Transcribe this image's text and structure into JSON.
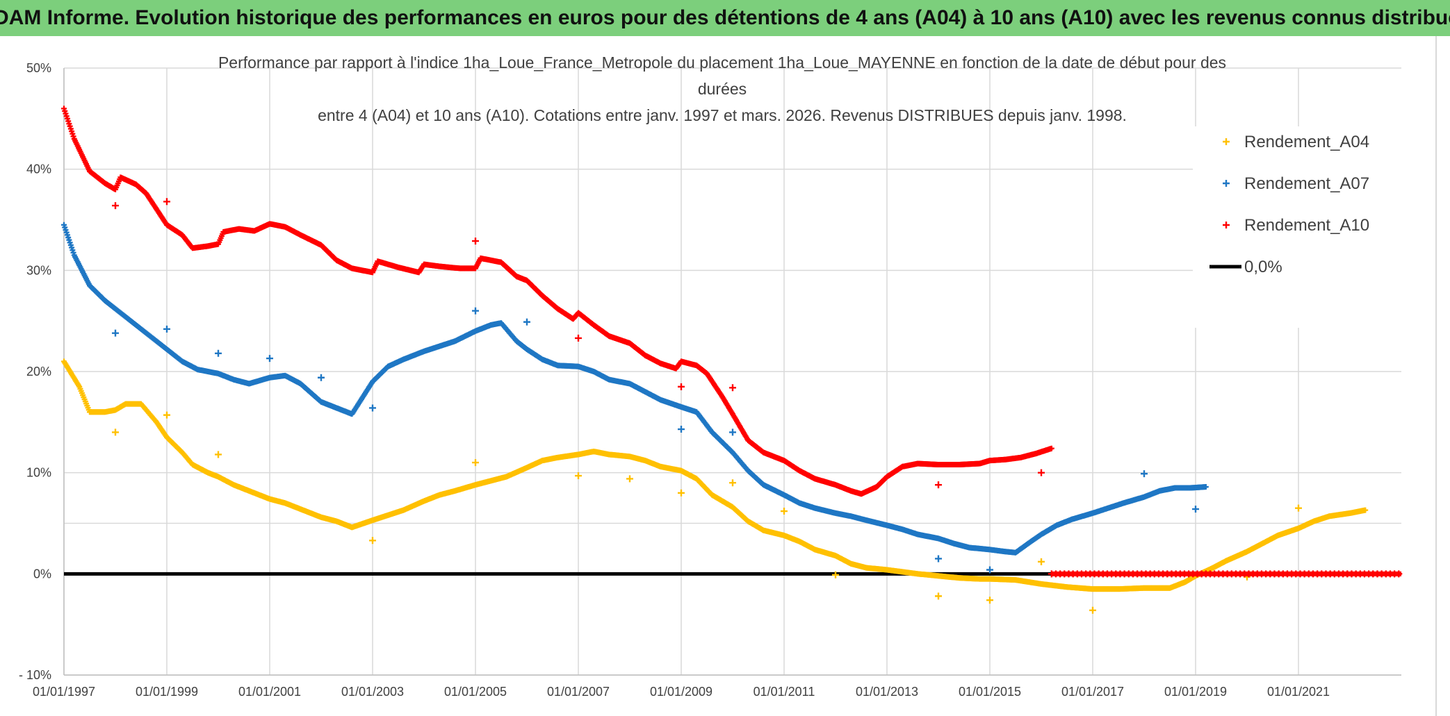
{
  "banner": {
    "title": "ADAM Informe. Evolution historique des performances en euros pour des détentions de 4 ans (A04) à 10 ans (A10) avec les revenus connus distribués"
  },
  "chart_data": {
    "type": "scatter",
    "title_lines": [
      "Performance par rapport à l'indice 1ha_Loue_France_Metropole  du placement 1ha_Loue_MAYENNE en fonction de la date de début pour des",
      "durées",
      "entre 4 (A04) et 10 ans (A10). Cotations entre janv. 1997 et mars. 2026. Revenus DISTRIBUES depuis janv. 1998."
    ],
    "xlabel": "",
    "ylabel": "",
    "xlim": [
      1997.0,
      2023.0
    ],
    "ylim": [
      -10,
      50
    ],
    "y_ticks": [
      -10,
      0,
      10,
      20,
      30,
      40,
      50
    ],
    "y_tick_labels": [
      "- 10%",
      "0%",
      "10%",
      "20%",
      "30%",
      "40%",
      "50%"
    ],
    "x_ticks": [
      1997,
      1999,
      2001,
      2003,
      2005,
      2007,
      2009,
      2011,
      2013,
      2015,
      2017,
      2019,
      2021
    ],
    "x_tick_labels": [
      "01/01/1997",
      "01/01/1999",
      "01/01/2001",
      "01/01/2003",
      "01/01/2005",
      "01/01/2007",
      "01/01/2009",
      "01/01/2011",
      "01/01/2013",
      "01/01/2015",
      "01/01/2017",
      "01/01/2019",
      "01/01/2021"
    ],
    "extra_gridline_y": 5,
    "grid": true,
    "legend_position": "top-right",
    "series": [
      {
        "name": "Rendement_A04",
        "color": "#ffc000",
        "points": [
          [
            1997.0,
            21.0
          ],
          [
            1997.3,
            18.5
          ],
          [
            1997.5,
            16.0
          ],
          [
            1997.8,
            16.0
          ],
          [
            1998.0,
            16.2
          ],
          [
            1998.2,
            16.8
          ],
          [
            1998.5,
            16.8
          ],
          [
            1998.8,
            15.0
          ],
          [
            1999.0,
            13.5
          ],
          [
            1999.3,
            12.0
          ],
          [
            1999.5,
            10.8
          ],
          [
            1999.8,
            10.0
          ],
          [
            2000.0,
            9.6
          ],
          [
            2000.3,
            8.8
          ],
          [
            2000.6,
            8.2
          ],
          [
            2001.0,
            7.4
          ],
          [
            2001.3,
            7.0
          ],
          [
            2001.6,
            6.4
          ],
          [
            2002.0,
            5.6
          ],
          [
            2002.3,
            5.2
          ],
          [
            2002.6,
            4.6
          ],
          [
            2003.0,
            5.3
          ],
          [
            2003.3,
            5.8
          ],
          [
            2003.6,
            6.3
          ],
          [
            2004.0,
            7.2
          ],
          [
            2004.3,
            7.8
          ],
          [
            2004.6,
            8.2
          ],
          [
            2005.0,
            8.8
          ],
          [
            2005.3,
            9.2
          ],
          [
            2005.6,
            9.6
          ],
          [
            2006.0,
            10.5
          ],
          [
            2006.3,
            11.2
          ],
          [
            2006.6,
            11.5
          ],
          [
            2007.0,
            11.8
          ],
          [
            2007.3,
            12.1
          ],
          [
            2007.6,
            11.8
          ],
          [
            2008.0,
            11.6
          ],
          [
            2008.3,
            11.2
          ],
          [
            2008.6,
            10.6
          ],
          [
            2009.0,
            10.2
          ],
          [
            2009.3,
            9.4
          ],
          [
            2009.6,
            7.8
          ],
          [
            2010.0,
            6.6
          ],
          [
            2010.3,
            5.2
          ],
          [
            2010.6,
            4.3
          ],
          [
            2011.0,
            3.8
          ],
          [
            2011.3,
            3.2
          ],
          [
            2011.6,
            2.4
          ],
          [
            2012.0,
            1.8
          ],
          [
            2012.3,
            1.0
          ],
          [
            2012.6,
            0.6
          ],
          [
            2013.0,
            0.4
          ],
          [
            2013.3,
            0.2
          ],
          [
            2013.6,
            0.0
          ],
          [
            2014.0,
            -0.2
          ],
          [
            2014.4,
            -0.4
          ],
          [
            2014.8,
            -0.5
          ],
          [
            2015.0,
            -0.5
          ],
          [
            2015.5,
            -0.6
          ],
          [
            2016.0,
            -1.0
          ],
          [
            2016.5,
            -1.3
          ],
          [
            2017.0,
            -1.5
          ],
          [
            2017.5,
            -1.5
          ],
          [
            2018.0,
            -1.4
          ],
          [
            2018.5,
            -1.4
          ],
          [
            2018.8,
            -0.8
          ],
          [
            2019.0,
            -0.2
          ],
          [
            2019.3,
            0.5
          ],
          [
            2019.6,
            1.3
          ],
          [
            2020.0,
            2.2
          ],
          [
            2020.3,
            3.0
          ],
          [
            2020.6,
            3.8
          ],
          [
            2021.0,
            4.5
          ],
          [
            2021.3,
            5.2
          ],
          [
            2021.6,
            5.7
          ],
          [
            2022.0,
            6.0
          ],
          [
            2022.3,
            6.3
          ]
        ],
        "outliers": [
          [
            1998.0,
            14.0
          ],
          [
            1999.0,
            15.7
          ],
          [
            2000.0,
            11.8
          ],
          [
            2003.0,
            3.3
          ],
          [
            2005.0,
            11.0
          ],
          [
            2007.0,
            9.7
          ],
          [
            2008.0,
            9.4
          ],
          [
            2009.0,
            8.0
          ],
          [
            2010.0,
            9.0
          ],
          [
            2011.0,
            6.2
          ],
          [
            2012.0,
            -0.1
          ],
          [
            2014.0,
            -2.2
          ],
          [
            2015.0,
            -2.6
          ],
          [
            2016.0,
            1.2
          ],
          [
            2017.0,
            -3.6
          ],
          [
            2020.0,
            -0.3
          ],
          [
            2021.0,
            6.5
          ]
        ]
      },
      {
        "name": "Rendement_A07",
        "color": "#1f77c4",
        "points": [
          [
            1997.0,
            34.5
          ],
          [
            1997.2,
            31.5
          ],
          [
            1997.5,
            28.5
          ],
          [
            1997.8,
            27.0
          ],
          [
            1998.0,
            26.2
          ],
          [
            1998.3,
            25.0
          ],
          [
            1998.6,
            23.8
          ],
          [
            1999.0,
            22.2
          ],
          [
            1999.3,
            21.0
          ],
          [
            1999.6,
            20.2
          ],
          [
            2000.0,
            19.8
          ],
          [
            2000.3,
            19.2
          ],
          [
            2000.6,
            18.8
          ],
          [
            2001.0,
            19.4
          ],
          [
            2001.3,
            19.6
          ],
          [
            2001.6,
            18.8
          ],
          [
            2002.0,
            17.0
          ],
          [
            2002.3,
            16.4
          ],
          [
            2002.6,
            15.8
          ],
          [
            2003.0,
            19.0
          ],
          [
            2003.3,
            20.5
          ],
          [
            2003.6,
            21.2
          ],
          [
            2004.0,
            22.0
          ],
          [
            2004.3,
            22.5
          ],
          [
            2004.6,
            23.0
          ],
          [
            2005.0,
            24.0
          ],
          [
            2005.3,
            24.6
          ],
          [
            2005.5,
            24.8
          ],
          [
            2005.8,
            23.0
          ],
          [
            2006.0,
            22.2
          ],
          [
            2006.3,
            21.2
          ],
          [
            2006.6,
            20.6
          ],
          [
            2007.0,
            20.5
          ],
          [
            2007.3,
            20.0
          ],
          [
            2007.6,
            19.2
          ],
          [
            2008.0,
            18.8
          ],
          [
            2008.3,
            18.0
          ],
          [
            2008.6,
            17.2
          ],
          [
            2009.0,
            16.5
          ],
          [
            2009.3,
            16.0
          ],
          [
            2009.6,
            14.0
          ],
          [
            2010.0,
            12.0
          ],
          [
            2010.3,
            10.2
          ],
          [
            2010.6,
            8.8
          ],
          [
            2011.0,
            7.8
          ],
          [
            2011.3,
            7.0
          ],
          [
            2011.6,
            6.5
          ],
          [
            2012.0,
            6.0
          ],
          [
            2012.3,
            5.7
          ],
          [
            2012.6,
            5.3
          ],
          [
            2013.0,
            4.8
          ],
          [
            2013.3,
            4.4
          ],
          [
            2013.6,
            3.9
          ],
          [
            2014.0,
            3.5
          ],
          [
            2014.3,
            3.0
          ],
          [
            2014.6,
            2.6
          ],
          [
            2015.0,
            2.4
          ],
          [
            2015.3,
            2.2
          ],
          [
            2015.5,
            2.1
          ],
          [
            2015.8,
            3.2
          ],
          [
            2016.0,
            3.9
          ],
          [
            2016.3,
            4.8
          ],
          [
            2016.6,
            5.4
          ],
          [
            2017.0,
            6.0
          ],
          [
            2017.3,
            6.5
          ],
          [
            2017.6,
            7.0
          ],
          [
            2018.0,
            7.6
          ],
          [
            2018.3,
            8.2
          ],
          [
            2018.6,
            8.5
          ],
          [
            2018.9,
            8.5
          ],
          [
            2019.2,
            8.6
          ]
        ],
        "outliers": [
          [
            1998.0,
            23.8
          ],
          [
            1999.0,
            24.2
          ],
          [
            2000.0,
            21.8
          ],
          [
            2001.0,
            21.3
          ],
          [
            2002.0,
            19.4
          ],
          [
            2003.0,
            16.4
          ],
          [
            2005.0,
            26.0
          ],
          [
            2006.0,
            24.9
          ],
          [
            2009.0,
            14.3
          ],
          [
            2010.0,
            14.0
          ],
          [
            2014.0,
            1.5
          ],
          [
            2015.0,
            0.4
          ],
          [
            2018.0,
            9.9
          ],
          [
            2019.0,
            6.4
          ]
        ]
      },
      {
        "name": "Rendement_A10",
        "color": "#ff0000",
        "points": [
          [
            1997.0,
            46.0
          ],
          [
            1997.2,
            43.0
          ],
          [
            1997.5,
            39.8
          ],
          [
            1997.8,
            38.6
          ],
          [
            1998.0,
            38.0
          ],
          [
            1998.1,
            39.2
          ],
          [
            1998.4,
            38.5
          ],
          [
            1998.6,
            37.6
          ],
          [
            1999.0,
            34.5
          ],
          [
            1999.3,
            33.5
          ],
          [
            1999.5,
            32.2
          ],
          [
            1999.8,
            32.4
          ],
          [
            2000.0,
            32.6
          ],
          [
            2000.1,
            33.8
          ],
          [
            2000.4,
            34.1
          ],
          [
            2000.7,
            33.9
          ],
          [
            2001.0,
            34.6
          ],
          [
            2001.3,
            34.3
          ],
          [
            2001.6,
            33.5
          ],
          [
            2002.0,
            32.5
          ],
          [
            2002.3,
            31.0
          ],
          [
            2002.6,
            30.2
          ],
          [
            2003.0,
            29.8
          ],
          [
            2003.1,
            30.9
          ],
          [
            2003.5,
            30.3
          ],
          [
            2003.9,
            29.8
          ],
          [
            2004.0,
            30.6
          ],
          [
            2004.3,
            30.4
          ],
          [
            2004.7,
            30.2
          ],
          [
            2005.0,
            30.2
          ],
          [
            2005.1,
            31.2
          ],
          [
            2005.5,
            30.8
          ],
          [
            2005.8,
            29.4
          ],
          [
            2006.0,
            29.0
          ],
          [
            2006.3,
            27.5
          ],
          [
            2006.6,
            26.2
          ],
          [
            2006.9,
            25.2
          ],
          [
            2007.0,
            25.8
          ],
          [
            2007.3,
            24.6
          ],
          [
            2007.6,
            23.5
          ],
          [
            2008.0,
            22.8
          ],
          [
            2008.3,
            21.6
          ],
          [
            2008.6,
            20.8
          ],
          [
            2008.9,
            20.3
          ],
          [
            2009.0,
            21.0
          ],
          [
            2009.3,
            20.6
          ],
          [
            2009.5,
            19.8
          ],
          [
            2009.8,
            17.5
          ],
          [
            2010.0,
            15.8
          ],
          [
            2010.3,
            13.2
          ],
          [
            2010.6,
            12.0
          ],
          [
            2011.0,
            11.2
          ],
          [
            2011.3,
            10.2
          ],
          [
            2011.6,
            9.4
          ],
          [
            2012.0,
            8.8
          ],
          [
            2012.3,
            8.2
          ],
          [
            2012.5,
            7.9
          ],
          [
            2012.8,
            8.6
          ],
          [
            2013.0,
            9.6
          ],
          [
            2013.3,
            10.6
          ],
          [
            2013.6,
            10.9
          ],
          [
            2014.0,
            10.8
          ],
          [
            2014.4,
            10.8
          ],
          [
            2014.8,
            10.9
          ],
          [
            2015.0,
            11.2
          ],
          [
            2015.3,
            11.3
          ],
          [
            2015.6,
            11.5
          ],
          [
            2015.9,
            11.9
          ],
          [
            2016.2,
            12.4
          ]
        ],
        "outliers": [
          [
            1998.0,
            36.4
          ],
          [
            1999.0,
            36.8
          ],
          [
            2005.0,
            32.9
          ],
          [
            2007.0,
            23.3
          ],
          [
            2009.0,
            18.5
          ],
          [
            2010.0,
            18.4
          ],
          [
            2014.0,
            8.8
          ],
          [
            2016.0,
            10.0
          ]
        ],
        "zero_band": [
          2016.2,
          2023.0
        ]
      }
    ],
    "reference_line": {
      "name": "0,0%",
      "value": 0,
      "color": "#000000"
    }
  }
}
